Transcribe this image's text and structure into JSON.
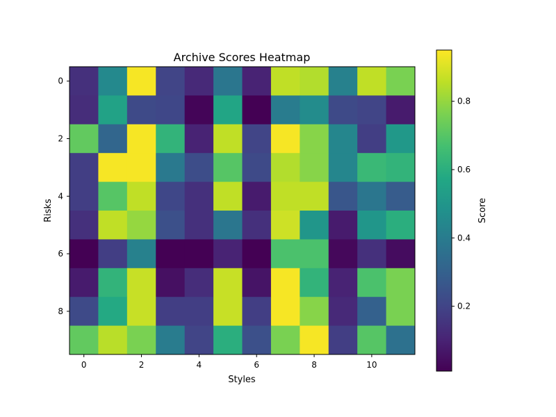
{
  "chart_data": {
    "type": "heatmap",
    "title": "Archive Scores Heatmap",
    "xlabel": "Styles",
    "ylabel": "Risks",
    "x_ticks": [
      0,
      2,
      4,
      6,
      8,
      10
    ],
    "y_ticks": [
      0,
      2,
      4,
      6,
      8
    ],
    "n_cols": 12,
    "n_rows": 10,
    "colormap": "viridis",
    "colorbar": {
      "label": "Score",
      "min": 0.01,
      "max": 0.95,
      "ticks": [
        0.2,
        0.4,
        0.6,
        0.8
      ]
    },
    "values": [
      [
        0.14,
        0.45,
        0.94,
        0.2,
        0.12,
        0.38,
        0.1,
        0.86,
        0.84,
        0.42,
        0.86,
        0.76
      ],
      [
        0.13,
        0.55,
        0.22,
        0.21,
        0.02,
        0.56,
        0.01,
        0.4,
        0.46,
        0.22,
        0.2,
        0.08
      ],
      [
        0.72,
        0.32,
        0.94,
        0.62,
        0.1,
        0.86,
        0.2,
        0.94,
        0.78,
        0.44,
        0.18,
        0.51
      ],
      [
        0.18,
        0.94,
        0.94,
        0.39,
        0.23,
        0.7,
        0.22,
        0.84,
        0.78,
        0.44,
        0.64,
        0.62
      ],
      [
        0.18,
        0.7,
        0.86,
        0.21,
        0.14,
        0.86,
        0.08,
        0.86,
        0.86,
        0.26,
        0.38,
        0.28
      ],
      [
        0.14,
        0.86,
        0.8,
        0.24,
        0.14,
        0.38,
        0.14,
        0.88,
        0.5,
        0.08,
        0.5,
        0.6
      ],
      [
        0.01,
        0.18,
        0.42,
        0.01,
        0.01,
        0.1,
        0.01,
        0.68,
        0.68,
        0.03,
        0.14,
        0.04
      ],
      [
        0.08,
        0.62,
        0.87,
        0.05,
        0.13,
        0.87,
        0.06,
        0.94,
        0.62,
        0.1,
        0.68,
        0.76
      ],
      [
        0.22,
        0.58,
        0.87,
        0.18,
        0.18,
        0.87,
        0.18,
        0.94,
        0.78,
        0.12,
        0.3,
        0.76
      ],
      [
        0.72,
        0.85,
        0.76,
        0.4,
        0.2,
        0.6,
        0.24,
        0.76,
        0.94,
        0.18,
        0.7,
        0.36
      ]
    ]
  }
}
